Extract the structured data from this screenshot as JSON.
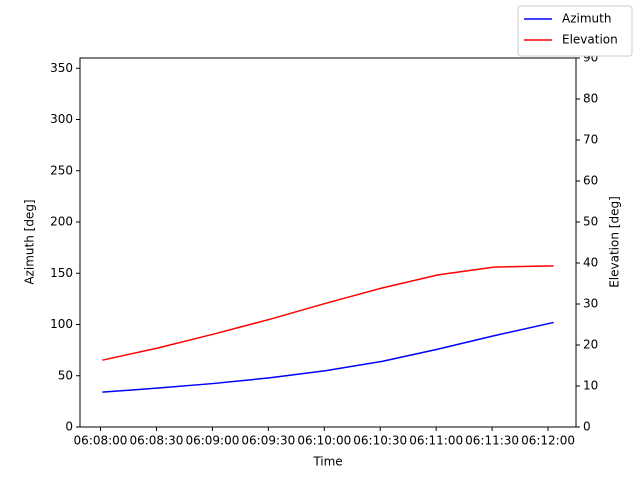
{
  "chart_data": {
    "type": "line",
    "x_label": "Time",
    "y_label": "Azimuth [deg]",
    "y2_label": "Elevation [deg]",
    "x": [
      "06:08:01",
      "06:08:31",
      "06:09:01",
      "06:09:31",
      "06:10:01",
      "06:10:31",
      "06:11:01",
      "06:11:31",
      "06:12:03"
    ],
    "series": [
      {
        "name": "Azimuth",
        "color": "#0000ff",
        "values": [
          34,
          38,
          42.5,
          48,
          55,
          64,
          76,
          89,
          102
        ]
      },
      {
        "name": "Elevation",
        "color": "#ff0000",
        "axis": "y2",
        "values": [
          16.3,
          19.3,
          22.7,
          26.3,
          30.2,
          33.9,
          37.1,
          39.0,
          39.3
        ]
      }
    ],
    "xlim": [
      "06:07:49",
      "06:12:15"
    ],
    "xticks": [
      "06:08:00",
      "06:08:30",
      "06:09:00",
      "06:09:30",
      "06:10:00",
      "06:10:30",
      "06:11:00",
      "06:11:30",
      "06:12:00"
    ],
    "ylim": [
      0,
      360
    ],
    "yticks": [
      0,
      50,
      100,
      150,
      200,
      250,
      300,
      350
    ],
    "y2lim": [
      0,
      90
    ],
    "y2ticks": [
      0,
      10,
      20,
      30,
      40,
      50,
      60,
      70,
      80,
      90
    ],
    "grid": false,
    "legend": "upper right"
  }
}
